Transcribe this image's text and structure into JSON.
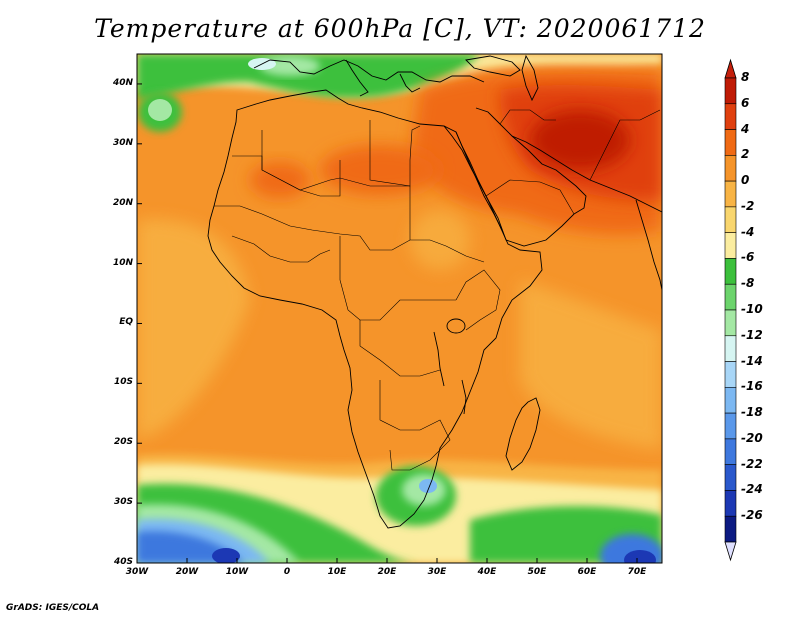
{
  "title": "Temperature at 600hPa [C], VT: 2020061712",
  "credit": "GrADS: IGES/COLA",
  "map": {
    "region": "Africa and Arabia",
    "lon_range": [
      -30,
      75
    ],
    "lat_range": [
      -40,
      45
    ],
    "x_ticks": [
      {
        "lon": -30,
        "label": "30W"
      },
      {
        "lon": -20,
        "label": "20W"
      },
      {
        "lon": -10,
        "label": "10W"
      },
      {
        "lon": 0,
        "label": "0"
      },
      {
        "lon": 10,
        "label": "10E"
      },
      {
        "lon": 20,
        "label": "20E"
      },
      {
        "lon": 30,
        "label": "30E"
      },
      {
        "lon": 40,
        "label": "40E"
      },
      {
        "lon": 50,
        "label": "50E"
      },
      {
        "lon": 60,
        "label": "60E"
      },
      {
        "lon": 70,
        "label": "70E"
      }
    ],
    "y_ticks": [
      {
        "lat": 40,
        "label": "40N"
      },
      {
        "lat": 30,
        "label": "30N"
      },
      {
        "lat": 20,
        "label": "20N"
      },
      {
        "lat": 10,
        "label": "10N"
      },
      {
        "lat": 0,
        "label": "EQ"
      },
      {
        "lat": -10,
        "label": "10S"
      },
      {
        "lat": -20,
        "label": "20S"
      },
      {
        "lat": -30,
        "label": "30S"
      },
      {
        "lat": -40,
        "label": "40S"
      }
    ]
  },
  "colorbar": {
    "labels": [
      "8",
      "6",
      "4",
      "2",
      "0",
      "-2",
      "-4",
      "-6",
      "-8",
      "-10",
      "-12",
      "-14",
      "-16",
      "-18",
      "-20",
      "-22",
      "-24",
      "-26"
    ],
    "colors": [
      "#bf1b06",
      "#e0400f",
      "#f06a14",
      "#f5942a",
      "#f8b445",
      "#f9d66e",
      "#fbeda0",
      "#3cc03c",
      "#6cd46c",
      "#a4e8a4",
      "#d6f5f2",
      "#a8d6f7",
      "#7cb8f2",
      "#5a98ea",
      "#3e78de",
      "#2a58cc",
      "#1c38b4",
      "#0c1a82"
    ],
    "top_color": "#c41f0b",
    "bottom_color": "#dfe0ff"
  }
}
